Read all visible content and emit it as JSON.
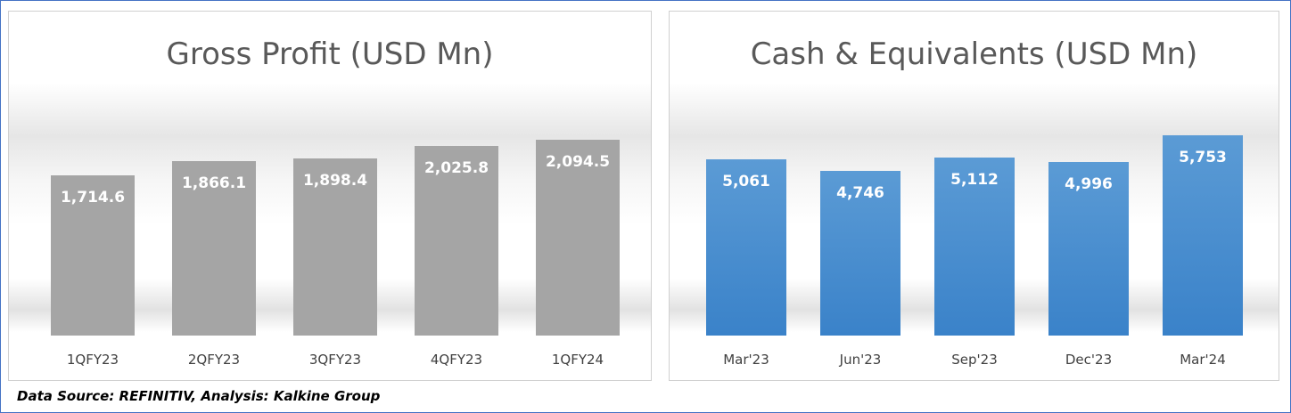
{
  "chart_data": [
    {
      "type": "bar",
      "title": "Gross Profit (USD Mn)",
      "categories": [
        "1QFY23",
        "2QFY23",
        "3QFY23",
        "4QFY23",
        "1QFY24"
      ],
      "values": [
        1714.6,
        1866.1,
        1898.4,
        2025.8,
        2094.5
      ],
      "value_labels": [
        "1,714.6",
        "1,866.1",
        "1,898.4",
        "2,025.8",
        "2,094.5"
      ],
      "ylim": [
        0,
        2400
      ],
      "color": "#a5a5a5",
      "grid": false,
      "legend": "none"
    },
    {
      "type": "bar",
      "title": "Cash & Equivalents (USD Mn)",
      "categories": [
        "Mar'23",
        "Jun'23",
        "Sep'23",
        "Dec'23",
        "Mar'24"
      ],
      "values": [
        5061,
        4746,
        5112,
        4996,
        5753
      ],
      "value_labels": [
        "5,061",
        "4,746",
        "5,112",
        "4,996",
        "5,753"
      ],
      "ylim": [
        0,
        6500
      ],
      "color": "#5b9bd5",
      "grid": false,
      "legend": "none"
    }
  ],
  "footer": {
    "source_text": "Data Source: REFINITIV, Analysis: Kalkine Group"
  }
}
